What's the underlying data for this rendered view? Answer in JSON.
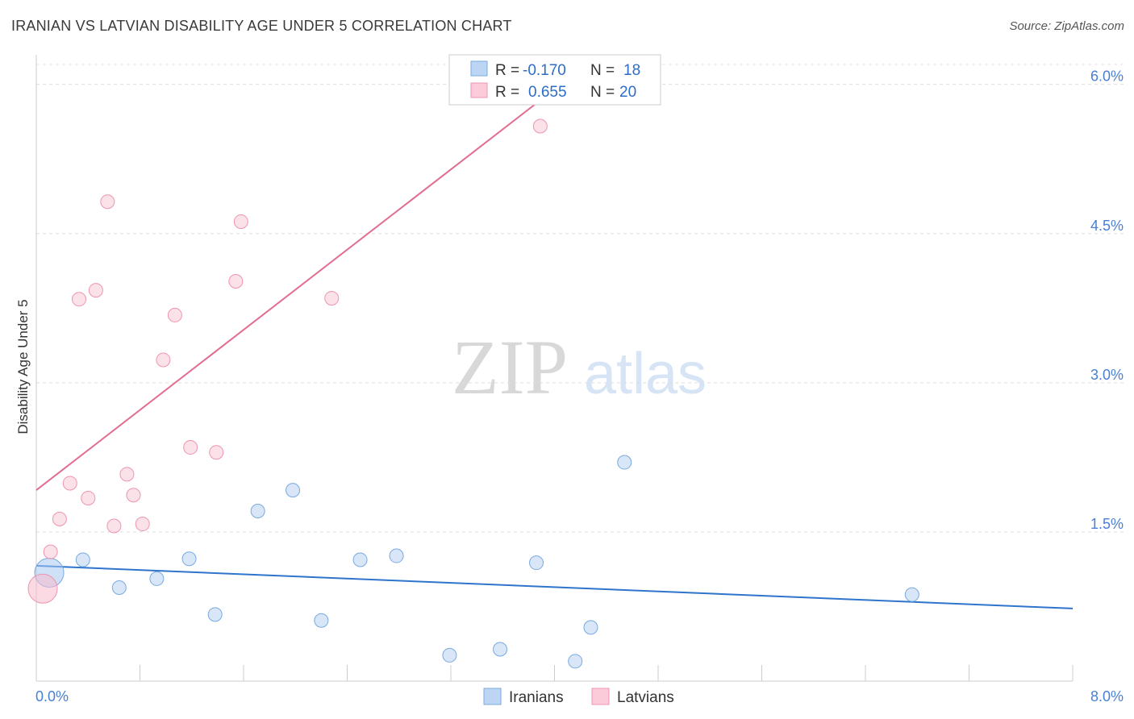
{
  "chart_data": {
    "type": "scatter",
    "title": "IRANIAN VS LATVIAN DISABILITY AGE UNDER 5 CORRELATION CHART",
    "source": "Source: ZipAtlas.com",
    "xlabel": "",
    "ylabel": "Disability Age Under 5",
    "xlim": [
      0,
      8
    ],
    "ylim": [
      0,
      6.2
    ],
    "x_tick_labels": [
      "0.0%",
      "8.0%"
    ],
    "y_ticks": [
      1.5,
      3.0,
      4.5,
      6.0
    ],
    "y_tick_labels": [
      "1.5%",
      "3.0%",
      "4.5%",
      "6.0%"
    ],
    "watermark": {
      "zip": "ZIP",
      "atlas": "atlas"
    },
    "stats": [
      {
        "r_label": "R =",
        "r": "-0.170",
        "n_label": "N =",
        "n": "18"
      },
      {
        "r_label": "R =",
        "r": "0.655",
        "n_label": "N =",
        "n": "20"
      }
    ],
    "series": [
      {
        "name": "Iranians",
        "color": "#a8c8f0",
        "stroke": "#7aaae0",
        "line_color": "#2f74cc",
        "trend": [
          [
            0,
            1.16
          ],
          [
            8,
            0.73
          ]
        ],
        "points": [
          [
            0.1,
            1.09,
            "large"
          ],
          [
            0.36,
            1.22
          ],
          [
            0.64,
            0.94
          ],
          [
            0.93,
            1.03
          ],
          [
            1.18,
            1.23
          ],
          [
            1.38,
            0.67
          ],
          [
            1.71,
            1.71
          ],
          [
            1.98,
            1.92
          ],
          [
            2.2,
            0.61
          ],
          [
            2.5,
            1.22
          ],
          [
            2.78,
            1.26
          ],
          [
            3.19,
            0.26
          ],
          [
            3.58,
            0.32
          ],
          [
            3.86,
            1.19
          ],
          [
            4.16,
            0.2
          ],
          [
            4.28,
            0.54
          ],
          [
            4.54,
            2.2
          ],
          [
            6.76,
            0.87
          ]
        ]
      },
      {
        "name": "Latvians",
        "color": "#f7bccd",
        "stroke": "#ee95ae",
        "line_color": "#e26d8f",
        "trend": [
          [
            0,
            1.92
          ],
          [
            3.9,
            5.85
          ]
        ],
        "points": [
          [
            0.05,
            0.93,
            "large"
          ],
          [
            0.11,
            1.3
          ],
          [
            0.18,
            1.63
          ],
          [
            0.26,
            1.99
          ],
          [
            0.33,
            3.84
          ],
          [
            0.4,
            1.84
          ],
          [
            0.46,
            3.93
          ],
          [
            0.55,
            4.82
          ],
          [
            0.6,
            1.56
          ],
          [
            0.7,
            2.08
          ],
          [
            0.75,
            1.87
          ],
          [
            0.82,
            1.58
          ],
          [
            0.98,
            3.23
          ],
          [
            1.07,
            3.68
          ],
          [
            1.19,
            2.35
          ],
          [
            1.39,
            2.3
          ],
          [
            1.54,
            4.02
          ],
          [
            1.58,
            4.62
          ],
          [
            2.28,
            3.85
          ],
          [
            3.89,
            5.58
          ]
        ]
      }
    ],
    "legend_position": "top-center"
  }
}
